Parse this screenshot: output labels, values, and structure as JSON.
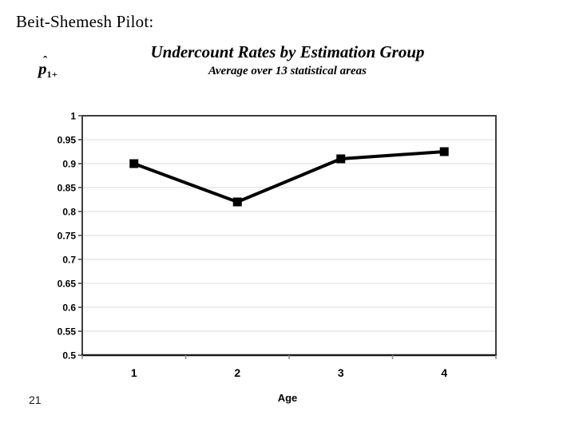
{
  "slide": {
    "header": "Beit-Shemesh Pilot:",
    "page_number": "21",
    "y_axis_symbol": {
      "base": "p",
      "hat": "ˆ",
      "sub": "1+"
    }
  },
  "chart": {
    "title": "Undercount Rates by Estimation Group",
    "subtitle": "Average over 13 statistical areas",
    "xlabel": "Age"
  },
  "chart_data": {
    "type": "line",
    "title": "Undercount Rates by Estimation Group",
    "subtitle": "Average over 13 statistical areas",
    "xlabel": "Age",
    "ylabel": "p̂1+",
    "x": [
      1,
      2,
      3,
      4
    ],
    "x_tick_labels": [
      "1",
      "2",
      "3",
      "4"
    ],
    "values": [
      0.9,
      0.82,
      0.91,
      0.925
    ],
    "ylim": [
      0.5,
      1.0
    ],
    "y_tick_step": 0.05,
    "y_tick_labels": [
      "1",
      "0.95",
      "0.9",
      "0.85",
      "0.8",
      "0.75",
      "0.7",
      "0.65",
      "0.6",
      "0.55",
      "0.5"
    ],
    "grid": true,
    "legend": false,
    "marker": "square",
    "series_color": "#000000"
  },
  "colors": {
    "background": "#ffffff",
    "text": "#000000",
    "axis": "#3f3f3f",
    "tick": "#8c8c8c",
    "gridline": "#e2e2e2",
    "series": "#000000"
  }
}
